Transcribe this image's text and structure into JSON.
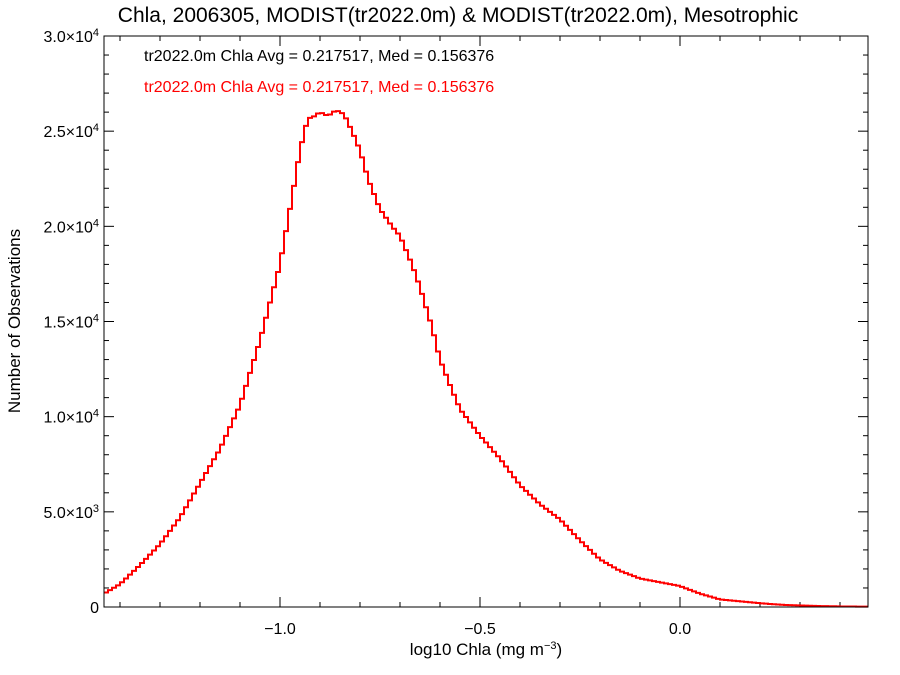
{
  "chart_data": {
    "type": "line",
    "step": true,
    "title": "Chla, 2006305, MODIST(tr2022.0m) & MODIST(tr2022.0m), Mesotrophic",
    "xlabel_base": "log10 Chla (mg m",
    "xlabel_sup": "−3",
    "xlabel_end": ")",
    "ylabel": "Number of Observations",
    "xlim": [
      -1.44,
      0.47
    ],
    "ylim": [
      0,
      30000
    ],
    "x_ticks": [
      {
        "value": -1.0,
        "label": "−1.0"
      },
      {
        "value": -0.5,
        "label": "−0.5"
      },
      {
        "value": 0.0,
        "label": "0.0"
      }
    ],
    "y_ticks": [
      {
        "value": 0,
        "mant": "0",
        "exp": ""
      },
      {
        "value": 5000,
        "mant": "5.0×10",
        "exp": "3"
      },
      {
        "value": 10000,
        "mant": "1.0×10",
        "exp": "4"
      },
      {
        "value": 15000,
        "mant": "1.5×10",
        "exp": "4"
      },
      {
        "value": 20000,
        "mant": "2.0×10",
        "exp": "4"
      },
      {
        "value": 25000,
        "mant": "2.5×10",
        "exp": "4"
      },
      {
        "value": 30000,
        "mant": "3.0×10",
        "exp": "4"
      }
    ],
    "annotations": [
      {
        "text": "tr2022.0m Chla Avg = 0.217517, Med = 0.156376",
        "color": "#000000"
      },
      {
        "text": "tr2022.0m Chla Avg = 0.217517, Med = 0.156376",
        "color": "#ff0000"
      }
    ],
    "series": [
      {
        "color": "#ff0000",
        "x": [
          -1.44,
          -1.4,
          -1.35,
          -1.3,
          -1.25,
          -1.2,
          -1.15,
          -1.1,
          -1.05,
          -1.0,
          -0.97,
          -0.95,
          -0.93,
          -0.92,
          -0.9,
          -0.88,
          -0.86,
          -0.84,
          -0.82,
          -0.8,
          -0.78,
          -0.75,
          -0.72,
          -0.7,
          -0.67,
          -0.65,
          -0.62,
          -0.6,
          -0.57,
          -0.55,
          -0.5,
          -0.45,
          -0.4,
          -0.35,
          -0.3,
          -0.25,
          -0.2,
          -0.15,
          -0.1,
          -0.05,
          0.0,
          0.05,
          0.1,
          0.15,
          0.2,
          0.25,
          0.3,
          0.35,
          0.4,
          0.45,
          0.47
        ],
        "y": [
          700,
          1200,
          2200,
          3300,
          4700,
          6500,
          8300,
          10600,
          14000,
          18000,
          21500,
          24000,
          25700,
          25700,
          26000,
          25800,
          26100,
          25900,
          25000,
          24000,
          22500,
          20900,
          20000,
          19500,
          18000,
          16800,
          14700,
          13000,
          11400,
          10400,
          9000,
          7800,
          6400,
          5400,
          4600,
          3500,
          2500,
          1900,
          1500,
          1300,
          1100,
          700,
          400,
          300,
          200,
          120,
          80,
          50,
          30,
          20,
          20
        ]
      }
    ]
  }
}
